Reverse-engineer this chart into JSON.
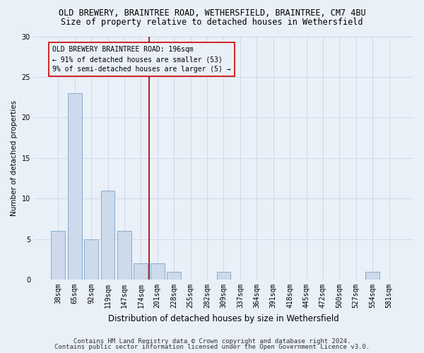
{
  "title_line1": "OLD BREWERY, BRAINTREE ROAD, WETHERSFIELD, BRAINTREE, CM7 4BU",
  "title_line2": "Size of property relative to detached houses in Wethersfield",
  "xlabel": "Distribution of detached houses by size in Wethersfield",
  "ylabel": "Number of detached properties",
  "categories": [
    "38sqm",
    "65sqm",
    "92sqm",
    "119sqm",
    "147sqm",
    "174sqm",
    "201sqm",
    "228sqm",
    "255sqm",
    "282sqm",
    "309sqm",
    "337sqm",
    "364sqm",
    "391sqm",
    "418sqm",
    "445sqm",
    "472sqm",
    "500sqm",
    "527sqm",
    "554sqm",
    "581sqm"
  ],
  "values": [
    6,
    23,
    5,
    11,
    6,
    2,
    2,
    1,
    0,
    0,
    1,
    0,
    0,
    0,
    0,
    0,
    0,
    0,
    0,
    1,
    0
  ],
  "bar_color": "#ccdaec",
  "bar_edge_color": "#7ba3c8",
  "grid_color": "#d0d8e8",
  "vline_x": 6.0,
  "vline_color": "#990000",
  "ylim": [
    0,
    30
  ],
  "yticks": [
    0,
    5,
    10,
    15,
    20,
    25,
    30
  ],
  "annotation_box_text": "OLD BREWERY BRAINTREE ROAD: 196sqm\n← 91% of detached houses are smaller (53)\n9% of semi-detached houses are larger (5) →",
  "annotation_box_color": "#cc0000",
  "footnote_line1": "Contains HM Land Registry data © Crown copyright and database right 2024.",
  "footnote_line2": "Contains public sector information licensed under the Open Government Licence v3.0.",
  "bg_color": "#eaf0f8",
  "title_fontsize": 8.5,
  "subtitle_fontsize": 8.5,
  "xlabel_fontsize": 8.5,
  "ylabel_fontsize": 7.5,
  "tick_fontsize": 7,
  "annot_fontsize": 7,
  "footnote_fontsize": 6.5
}
